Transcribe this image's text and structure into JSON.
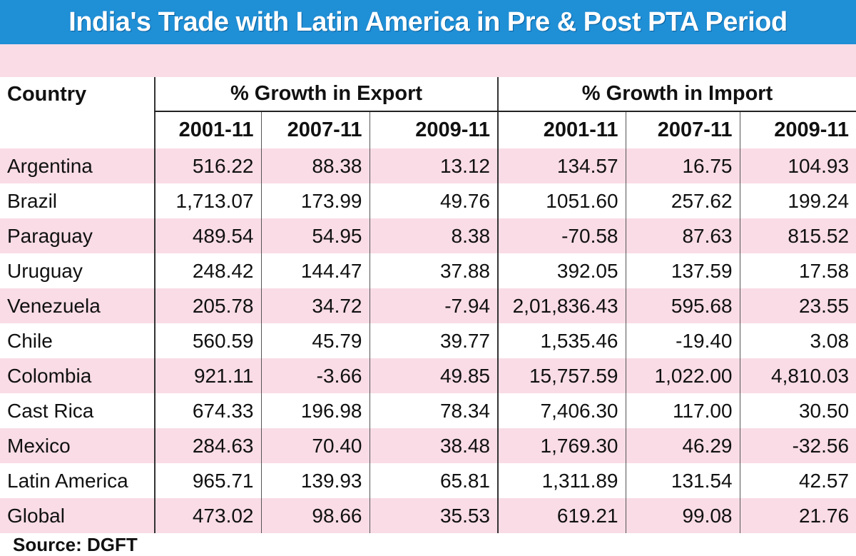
{
  "title": "India's Trade with Latin America in Pre & Post PTA Period",
  "source": "Source: DGFT",
  "colors": {
    "title_bg": "#1f8fd6",
    "stripe": "#f9dce6"
  },
  "chart_data": {
    "type": "table",
    "columns": {
      "country_header": "Country",
      "groups": [
        "% Growth in Export",
        "% Growth in Import"
      ],
      "years": [
        "2001-11",
        "2007-11",
        "2009-11",
        "2001-11",
        "2007-11",
        "2009-11"
      ]
    },
    "rows": [
      {
        "country": "Argentina",
        "values": [
          "516.22",
          "88.38",
          "13.12",
          "134.57",
          "16.75",
          "104.93"
        ]
      },
      {
        "country": "Brazil",
        "values": [
          "1,713.07",
          "173.99",
          "49.76",
          "1051.60",
          "257.62",
          "199.24"
        ]
      },
      {
        "country": "Paraguay",
        "values": [
          "489.54",
          "54.95",
          "8.38",
          "-70.58",
          "87.63",
          "815.52"
        ]
      },
      {
        "country": "Uruguay",
        "values": [
          "248.42",
          "144.47",
          "37.88",
          "392.05",
          "137.59",
          "17.58"
        ]
      },
      {
        "country": "Venezuela",
        "values": [
          "205.78",
          "34.72",
          "-7.94",
          "2,01,836.43",
          "595.68",
          "23.55"
        ]
      },
      {
        "country": "Chile",
        "values": [
          "560.59",
          "45.79",
          "39.77",
          "1,535.46",
          "-19.40",
          "3.08"
        ]
      },
      {
        "country": "Colombia",
        "values": [
          "921.11",
          "-3.66",
          "49.85",
          "15,757.59",
          "1,022.00",
          "4,810.03"
        ]
      },
      {
        "country": "Cast Rica",
        "values": [
          "674.33",
          "196.98",
          "78.34",
          "7,406.30",
          "117.00",
          "30.50"
        ]
      },
      {
        "country": "Mexico",
        "values": [
          "284.63",
          "70.40",
          "38.48",
          "1,769.30",
          "46.29",
          "-32.56"
        ]
      },
      {
        "country": "Latin America",
        "values": [
          "965.71",
          "139.93",
          "65.81",
          "1,311.89",
          "131.54",
          "42.57"
        ]
      },
      {
        "country": "Global",
        "values": [
          "473.02",
          "98.66",
          "35.53",
          "619.21",
          "99.08",
          "21.76"
        ]
      }
    ]
  }
}
